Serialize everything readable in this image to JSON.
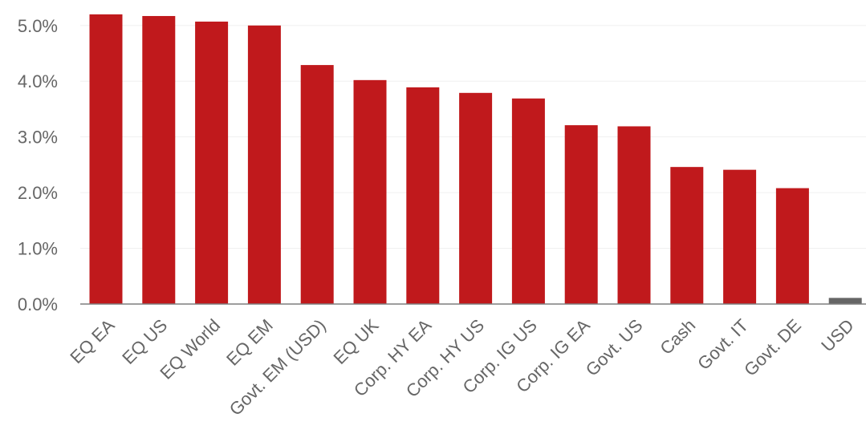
{
  "chart_data": {
    "type": "bar",
    "title": "",
    "xlabel": "",
    "ylabel": "",
    "ylim": [
      0,
      5.4
    ],
    "y_ticks": [
      0,
      1,
      2,
      3,
      4,
      5
    ],
    "y_tick_labels": [
      "0.0%",
      "1.0%",
      "2.0%",
      "3.0%",
      "4.0%",
      "5.0%"
    ],
    "grid": true,
    "categories": [
      "EQ EA",
      "EQ US",
      "EQ World",
      "EQ EM",
      "Govt. EM (USD)",
      "EQ UK",
      "Corp. HY EA",
      "Corp. HY US",
      "Corp. IG US",
      "Corp. IG EA",
      "Govt. US",
      "Cash",
      "Govt. IT",
      "Govt. DE",
      "USD"
    ],
    "values": [
      5.2,
      5.17,
      5.07,
      5.0,
      4.29,
      4.02,
      3.89,
      3.79,
      3.69,
      3.21,
      3.19,
      2.46,
      2.41,
      2.08,
      0.11
    ],
    "colors": {
      "bar": "#c0191c",
      "highlight": "#666666",
      "axis": "#7f7f7f",
      "grid": "#f0f0f0",
      "tick_text": "#666666"
    },
    "highlight_categories": [
      "USD"
    ]
  }
}
